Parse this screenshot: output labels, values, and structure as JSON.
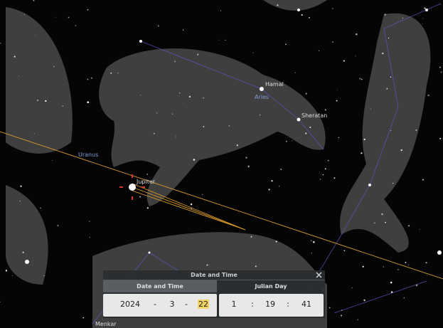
{
  "sky_labels": [
    "Hamal",
    "Aries",
    "Sheratan",
    "Uranus",
    "Jupiter",
    "Menkar"
  ],
  "dialog": {
    "title": "Date and Time",
    "tabs": [
      "Date and Time",
      "Julian Day"
    ],
    "date": {
      "year": 2024,
      "month": 3,
      "day": 22,
      "separator": "-"
    },
    "time": {
      "hour": 1,
      "minute": 19,
      "second": 41,
      "separator": ":"
    }
  }
}
